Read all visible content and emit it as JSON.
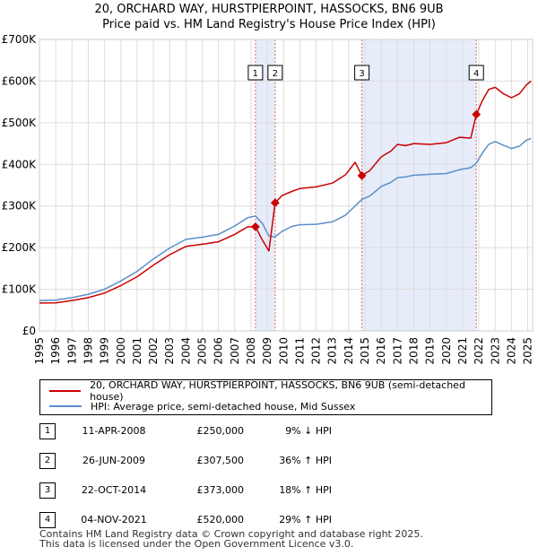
{
  "chart_data": {
    "type": "line",
    "title": "20, ORCHARD WAY, HURSTPIERPOINT, HASSOCKS, BN6 9UB",
    "subtitle": "Price paid vs. HM Land Registry's House Price Index (HPI)",
    "xlim": [
      1995,
      2025.3
    ],
    "ylim": [
      0,
      700000
    ],
    "x_ticks": [
      "1995",
      "1996",
      "1997",
      "1998",
      "1999",
      "2000",
      "2001",
      "2002",
      "2003",
      "2004",
      "2005",
      "2006",
      "2007",
      "2008",
      "2009",
      "2010",
      "2011",
      "2012",
      "2013",
      "2014",
      "2015",
      "2016",
      "2017",
      "2018",
      "2019",
      "2020",
      "2021",
      "2022",
      "2023",
      "2024",
      "2025"
    ],
    "y_ticks": [
      {
        "value": 0,
        "label": "£0"
      },
      {
        "value": 100000,
        "label": "£100K"
      },
      {
        "value": 200000,
        "label": "£200K"
      },
      {
        "value": 300000,
        "label": "£300K"
      },
      {
        "value": 400000,
        "label": "£400K"
      },
      {
        "value": 500000,
        "label": "£500K"
      },
      {
        "value": 600000,
        "label": "£600K"
      },
      {
        "value": 700000,
        "label": "£700K"
      }
    ],
    "grid": true,
    "series": [
      {
        "name": "20, ORCHARD WAY, HURSTPIERPOINT, HASSOCKS, BN6 9UB (semi-detached house)",
        "color": "#cc0000",
        "points": [
          [
            1995,
            67000
          ],
          [
            1996,
            67500
          ],
          [
            1997,
            73000
          ],
          [
            1998,
            80000
          ],
          [
            1999,
            91000
          ],
          [
            2000,
            109000
          ],
          [
            2001,
            130000
          ],
          [
            2002,
            158000
          ],
          [
            2003,
            183000
          ],
          [
            2004,
            203000
          ],
          [
            2005,
            208000
          ],
          [
            2006,
            214000
          ],
          [
            2007,
            232000
          ],
          [
            2007.8,
            250000
          ],
          [
            2008.27,
            250000
          ],
          [
            2008.7,
            218000
          ],
          [
            2009.1,
            192000
          ],
          [
            2009.48,
            307500
          ],
          [
            2009.9,
            325000
          ],
          [
            2010.5,
            335000
          ],
          [
            2011,
            342000
          ],
          [
            2012,
            346000
          ],
          [
            2013,
            355000
          ],
          [
            2013.8,
            375000
          ],
          [
            2014.4,
            405000
          ],
          [
            2014.81,
            373000
          ],
          [
            2015.3,
            385000
          ],
          [
            2016,
            418000
          ],
          [
            2016.6,
            432000
          ],
          [
            2017,
            448000
          ],
          [
            2017.5,
            445000
          ],
          [
            2018,
            450000
          ],
          [
            2019,
            448000
          ],
          [
            2020,
            452000
          ],
          [
            2020.8,
            465000
          ],
          [
            2021.5,
            463000
          ],
          [
            2021.84,
            520000
          ],
          [
            2022.2,
            552000
          ],
          [
            2022.6,
            580000
          ],
          [
            2023,
            585000
          ],
          [
            2023.5,
            570000
          ],
          [
            2024,
            560000
          ],
          [
            2024.5,
            570000
          ],
          [
            2024.9,
            590000
          ],
          [
            2025.2,
            600000
          ]
        ]
      },
      {
        "name": "HPI: Average price, semi-detached house, Mid Sussex",
        "color": "#5b8fc9",
        "points": [
          [
            1995,
            73000
          ],
          [
            1996,
            74000
          ],
          [
            1997,
            80000
          ],
          [
            1998,
            88000
          ],
          [
            1999,
            100000
          ],
          [
            2000,
            120000
          ],
          [
            2001,
            143000
          ],
          [
            2002,
            173000
          ],
          [
            2003,
            199000
          ],
          [
            2004,
            220000
          ],
          [
            2005,
            225000
          ],
          [
            2006,
            232000
          ],
          [
            2007,
            252000
          ],
          [
            2007.8,
            272000
          ],
          [
            2008.27,
            276000
          ],
          [
            2008.7,
            258000
          ],
          [
            2009.1,
            228000
          ],
          [
            2009.48,
            226000
          ],
          [
            2009.9,
            239000
          ],
          [
            2010.5,
            251000
          ],
          [
            2011,
            255000
          ],
          [
            2012,
            256000
          ],
          [
            2013,
            262000
          ],
          [
            2013.8,
            278000
          ],
          [
            2014.4,
            300000
          ],
          [
            2014.81,
            316000
          ],
          [
            2015.3,
            324000
          ],
          [
            2016,
            347000
          ],
          [
            2016.6,
            357000
          ],
          [
            2017,
            368000
          ],
          [
            2017.5,
            370000
          ],
          [
            2018,
            374000
          ],
          [
            2019,
            376000
          ],
          [
            2020,
            378000
          ],
          [
            2020.8,
            387000
          ],
          [
            2021.5,
            392000
          ],
          [
            2021.84,
            403000
          ],
          [
            2022.2,
            426000
          ],
          [
            2022.6,
            448000
          ],
          [
            2023,
            455000
          ],
          [
            2023.5,
            446000
          ],
          [
            2024,
            438000
          ],
          [
            2024.5,
            444000
          ],
          [
            2024.9,
            458000
          ],
          [
            2025.2,
            462000
          ]
        ]
      }
    ],
    "sales": [
      {
        "num": "1",
        "x": 2008.27,
        "price": 250000
      },
      {
        "num": "2",
        "x": 2009.48,
        "price": 307500
      },
      {
        "num": "3",
        "x": 2014.81,
        "price": 373000
      },
      {
        "num": "4",
        "x": 2021.84,
        "price": 520000
      }
    ],
    "shaded_spans": [
      [
        2008.27,
        2009.48
      ],
      [
        2014.81,
        2021.84
      ]
    ]
  },
  "legend": {
    "property_label": "20, ORCHARD WAY, HURSTPIERPOINT, HASSOCKS, BN6 9UB (semi-detached house)",
    "hpi_label": "HPI: Average price, semi-detached house, Mid Sussex"
  },
  "sales_table": [
    {
      "num": "1",
      "date": "11-APR-2008",
      "price": "£250,000",
      "hpi": "9% ↓ HPI"
    },
    {
      "num": "2",
      "date": "26-JUN-2009",
      "price": "£307,500",
      "hpi": "36% ↑ HPI"
    },
    {
      "num": "3",
      "date": "22-OCT-2014",
      "price": "£373,000",
      "hpi": "18% ↑ HPI"
    },
    {
      "num": "4",
      "date": "04-NOV-2021",
      "price": "£520,000",
      "hpi": "29% ↑ HPI"
    }
  ],
  "footer": {
    "line1": "Contains HM Land Registry data © Crown copyright and database right 2025.",
    "line2": "This data is licensed under the Open Government Licence v3.0."
  }
}
